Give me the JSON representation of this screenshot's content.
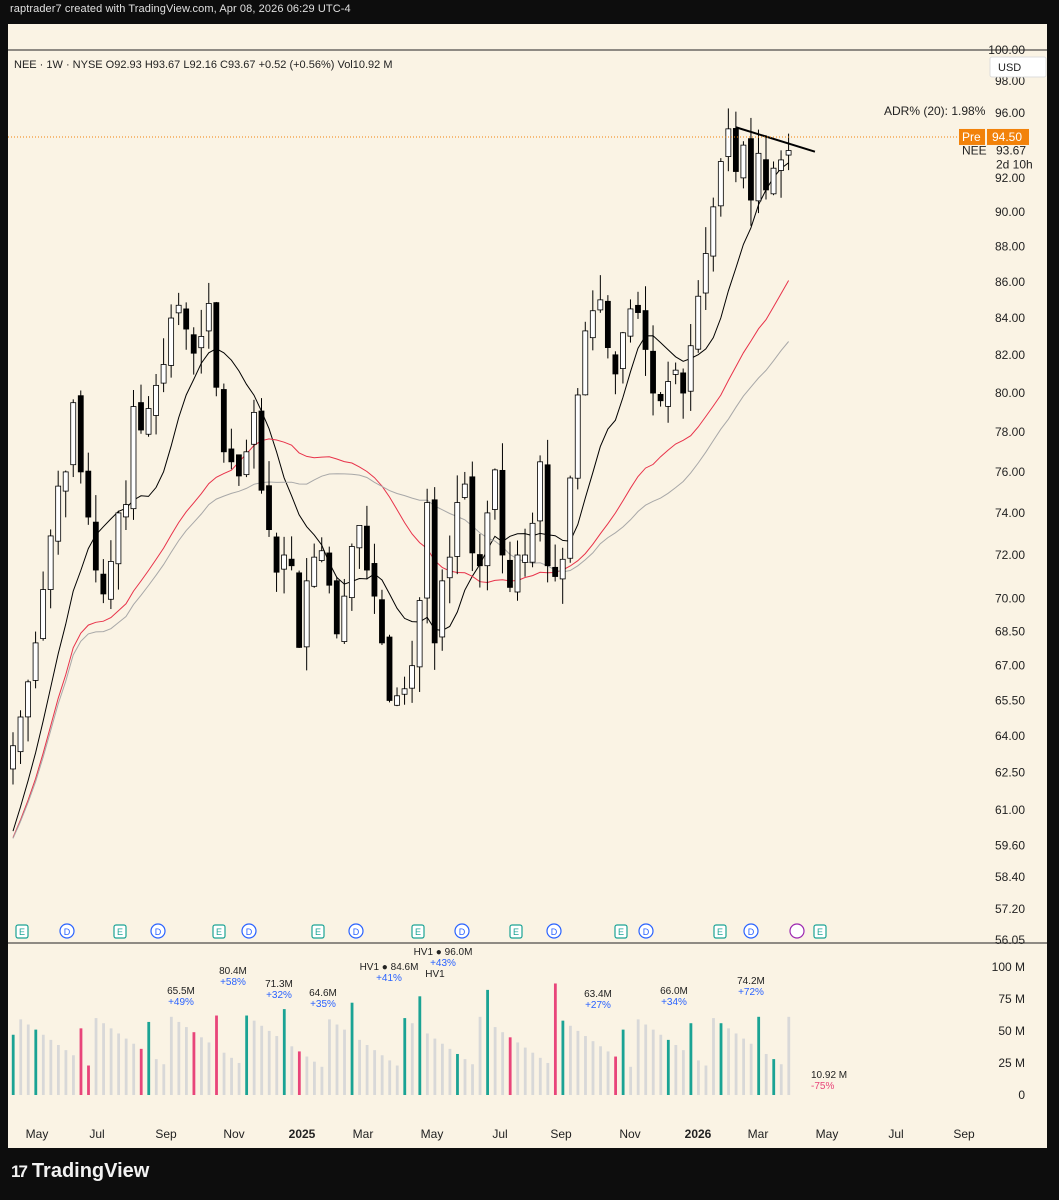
{
  "header": {
    "text": "raptrader7 created with TradingView.com, Apr 08, 2026 06:29 UTC-4"
  },
  "legend": {
    "text": "NEE · 1W · NYSE  O92.93  H93.67  L92.16  C93.67  +0.52 (+0.56%)  Vol10.92 M"
  },
  "currency": "USD",
  "adr": "ADR% (20): 1.98%",
  "premarket": {
    "tag": "Pre",
    "value": "94.50"
  },
  "last": {
    "symbol": "NEE",
    "value": "93.67",
    "countdown": "2d 10h"
  },
  "footer": {
    "brand": "TradingView",
    "mark": "17"
  },
  "colors": {
    "up_fill": "#ffffff",
    "down_fill": "#000000",
    "sma_short": "#000000",
    "sma_mid": "#e8324a",
    "sma_long": "#a8a8a8",
    "vol_up": "#1aa394",
    "vol_down": "#e8457a",
    "vol_avg": "#d8d8d8",
    "pre_orange": "#f2820a"
  },
  "event_markers": [
    "E",
    "D",
    "E",
    "D",
    "E",
    "D",
    "E",
    "D",
    "E",
    "D",
    "E",
    "D",
    "E",
    "D",
    "E",
    "D",
    "E"
  ],
  "chart_data": {
    "type": "candlestick",
    "symbol": "NEE",
    "interval": "1W",
    "exchange": "NYSE",
    "y_scale": "log",
    "yticks": [
      "100.00",
      "98.00",
      "96.00",
      "92.00",
      "90.00",
      "88.00",
      "86.00",
      "84.00",
      "82.00",
      "80.00",
      "78.00",
      "76.00",
      "74.00",
      "72.00",
      "70.00",
      "68.50",
      "67.00",
      "65.50",
      "64.00",
      "62.50",
      "61.00",
      "59.60",
      "58.40",
      "57.20",
      "56.05"
    ],
    "ylim": [
      56.05,
      100.0
    ],
    "xticks": [
      "May",
      "Jul",
      "Sep",
      "Nov",
      "2025",
      "Mar",
      "May",
      "Jul",
      "Sep",
      "Nov",
      "2026",
      "Mar",
      "May",
      "Jul",
      "Sep"
    ],
    "closes": [
      63.6,
      64.8,
      66.3,
      68.0,
      70.4,
      72.9,
      75.3,
      76.0,
      79.5,
      76.0,
      73.8,
      71.3,
      70.2,
      71.7,
      74.0,
      74.4,
      79.3,
      78.1,
      79.2,
      80.4,
      81.5,
      84.0,
      84.7,
      83.4,
      82.1,
      83.0,
      84.8,
      80.3,
      77.0,
      76.5,
      75.8,
      77.0,
      79.0,
      75.1,
      73.2,
      71.2,
      72.0,
      71.5,
      67.8,
      70.8,
      71.9,
      72.2,
      70.6,
      68.4,
      70.1,
      72.4,
      73.4,
      71.3,
      70.1,
      68.0,
      65.5,
      65.7,
      66.0,
      67.0,
      69.9,
      74.5,
      68.0,
      70.8,
      71.9,
      74.5,
      75.4,
      72.1,
      71.5,
      74.0,
      76.1,
      72.0,
      70.5,
      72.0,
      72.0,
      73.5,
      76.5,
      71.5,
      71.0,
      71.8,
      75.7,
      79.9,
      83.3,
      84.4,
      85.0,
      82.4,
      81.0,
      83.2,
      84.5,
      84.3,
      82.3,
      80.0,
      79.6,
      80.6,
      81.2,
      80.0,
      82.5,
      85.2,
      87.6,
      90.3,
      93.0,
      95.0,
      92.4,
      94.0,
      90.7,
      93.5,
      91.3,
      92.6,
      93.1,
      93.67
    ],
    "overlays": [
      {
        "name": "SMA 10",
        "color": "#000000"
      },
      {
        "name": "SMA 30",
        "color": "#e8324a"
      },
      {
        "name": "SMA 40",
        "color": "#a8a8a8"
      }
    ],
    "trendline": {
      "from": [
        95.1,
        95.1
      ],
      "to": [
        93.6,
        93.6
      ]
    },
    "volume": {
      "yticks": [
        "100 M",
        "75 M",
        "50 M",
        "25 M",
        "0"
      ],
      "ylim": [
        0,
        110
      ],
      "unit": "M",
      "last": "10.92 M",
      "last_change": "-75%",
      "annotations": [
        {
          "value": "65.5M",
          "change": "+49%"
        },
        {
          "value": "80.4M",
          "change": "+58%"
        },
        {
          "value": "71.3M",
          "change": "+32%"
        },
        {
          "value": "64.6M",
          "change": "+35%"
        },
        {
          "value": "HV1 ● 84.6M",
          "change": "+41%"
        },
        {
          "value": "HV1 ● 96.0M",
          "change": "+43%",
          "tag": "HV1"
        },
        {
          "value": "63.4M",
          "change": "+27%"
        },
        {
          "value": "66.0M",
          "change": "+34%"
        },
        {
          "value": "74.2M",
          "change": "+72%"
        }
      ]
    }
  }
}
